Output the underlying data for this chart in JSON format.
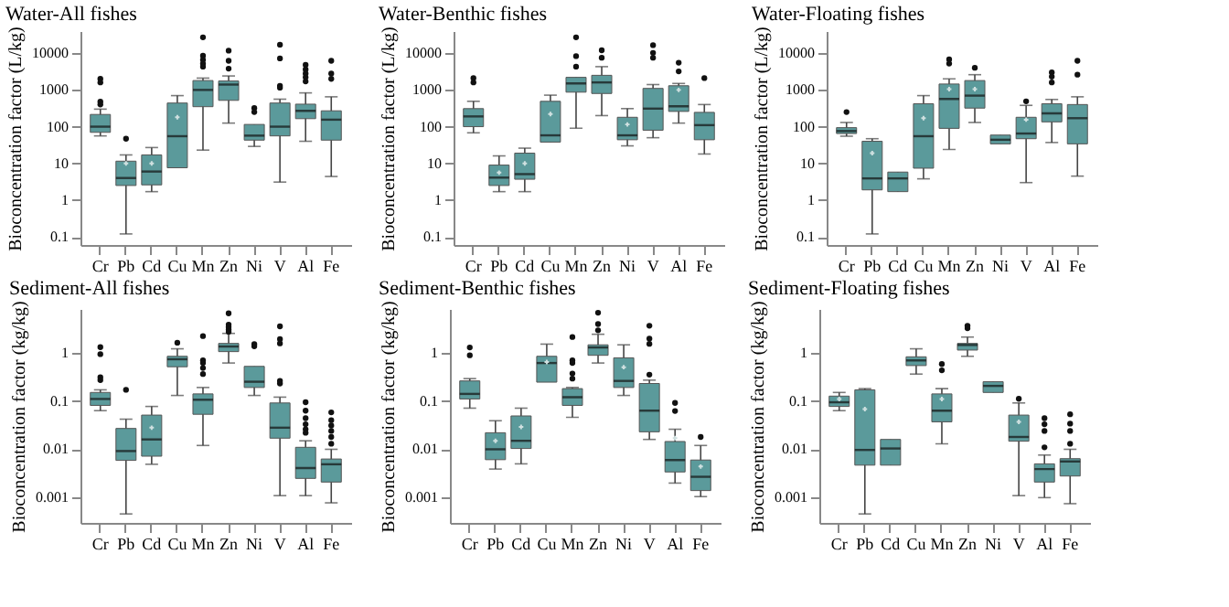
{
  "chart_data": [
    {
      "type": "box",
      "title": "Water-All fishes",
      "ylabel": "Bioconcentration factor (L/kg)",
      "categories": [
        "Cr",
        "Pb",
        "Cd",
        "Cu",
        "Mn",
        "Zn",
        "Ni",
        "V",
        "Al",
        "Fe"
      ],
      "log": true,
      "ylim": [
        0.06,
        40000
      ],
      "yticks": [
        0.1,
        1,
        10,
        100,
        1000,
        10000
      ],
      "series": [
        {
          "color": "#5b9a9b",
          "boxes": [
            {
              "low": 56,
              "q1": 70,
              "median": 100,
              "q3": 215,
              "high": 300,
              "outliers": [
                2000,
                1600,
                480,
                400
              ]
            },
            {
              "low": 0.12,
              "q1": 2.5,
              "median": 4,
              "q3": 11.5,
              "high": 17,
              "mean": 10,
              "outliers": [
                47
              ]
            },
            {
              "low": 1.7,
              "q1": 2.6,
              "median": 6,
              "q3": 17,
              "high": 27,
              "mean": 10
            },
            {
              "low": 7.6,
              "q1": 7.6,
              "median": 55,
              "q3": 440,
              "high": 700,
              "mean": 180
            },
            {
              "low": 23,
              "q1": 350,
              "median": 1000,
              "q3": 1800,
              "high": 2100,
              "outliers": [
                27000,
                8500,
                6600,
                5200,
                4300
              ]
            },
            {
              "low": 125,
              "q1": 520,
              "median": 1400,
              "q3": 1750,
              "high": 2400,
              "outliers": [
                11700,
                6200,
                3800
              ]
            },
            {
              "low": 29,
              "q1": 43,
              "median": 57,
              "q3": 115,
              "high": 115,
              "outliers": [
                320,
                250
              ]
            },
            {
              "low": 3.1,
              "q1": 56,
              "median": 100,
              "q3": 440,
              "high": 560,
              "outliers": [
                17000,
                7200,
                1300,
                1150
              ]
            },
            {
              "low": 40,
              "q1": 165,
              "median": 270,
              "q3": 410,
              "high": 830,
              "outliers": [
                4800,
                3600,
                2800,
                2200,
                1700
              ]
            },
            {
              "low": 4.4,
              "q1": 43,
              "median": 155,
              "q3": 270,
              "high": 650,
              "outliers": [
                6200,
                2800,
                2000
              ]
            }
          ]
        }
      ]
    },
    {
      "type": "box",
      "title": "Water-Benthic fishes",
      "ylabel": "Bioconcentration factor (L/kg)",
      "categories": [
        "Cr",
        "Pb",
        "Cd",
        "Cu",
        "Mn",
        "Zn",
        "Ni",
        "V",
        "Al",
        "Fe"
      ],
      "log": true,
      "ylim": [
        0.06,
        40000
      ],
      "yticks": [
        0.1,
        1,
        10,
        100,
        1000,
        10000
      ],
      "series": [
        {
          "color": "#5b9a9b",
          "boxes": [
            {
              "low": 68,
              "q1": 100,
              "median": 190,
              "q3": 310,
              "high": 490,
              "outliers": [
                2100,
                1600
              ]
            },
            {
              "low": 1.7,
              "q1": 2.5,
              "median": 4.1,
              "q3": 9,
              "high": 16,
              "mean": 5.6
            },
            {
              "low": 1.7,
              "q1": 3.7,
              "median": 5.1,
              "q3": 19,
              "high": 26,
              "mean": 10
            },
            {
              "low": 38,
              "q1": 38,
              "median": 58,
              "q3": 490,
              "high": 720,
              "mean": 220
            },
            {
              "low": 91,
              "q1": 870,
              "median": 1500,
              "q3": 2200,
              "high": 2200,
              "outliers": [
                27000,
                8300,
                4300
              ]
            },
            {
              "low": 200,
              "q1": 800,
              "median": 1600,
              "q3": 2500,
              "high": 4300,
              "outliers": [
                12000,
                7500
              ]
            },
            {
              "low": 30,
              "q1": 44,
              "median": 58,
              "q3": 180,
              "high": 310,
              "mean": 115
            },
            {
              "low": 50,
              "q1": 80,
              "median": 310,
              "q3": 1100,
              "high": 1400,
              "outliers": [
                16500,
                10200,
                7500
              ]
            },
            {
              "low": 125,
              "q1": 260,
              "median": 360,
              "q3": 1300,
              "high": 1500,
              "mean": 1000,
              "outliers": [
                5500,
                3200
              ]
            },
            {
              "low": 18,
              "q1": 44,
              "median": 110,
              "q3": 245,
              "high": 400,
              "outliers": [
                2100
              ]
            }
          ]
        }
      ]
    },
    {
      "type": "box",
      "title": "Water-Floating fishes",
      "ylabel": "Bioconcentration factor (L/kg)",
      "categories": [
        "Cr",
        "Pb",
        "Cd",
        "Cu",
        "Mn",
        "Zn",
        "Ni",
        "V",
        "Al",
        "Fe"
      ],
      "log": true,
      "ylim": [
        0.06,
        40000
      ],
      "yticks": [
        0.1,
        1,
        10,
        100,
        1000,
        10000
      ],
      "series": [
        {
          "color": "#5b9a9b",
          "boxes": [
            {
              "low": 55,
              "q1": 65,
              "median": 76,
              "q3": 94,
              "high": 130,
              "outliers": [
                250
              ]
            },
            {
              "low": 0.12,
              "q1": 1.9,
              "median": 3.9,
              "q3": 40,
              "high": 47,
              "mean": 19
            },
            {
              "low": 1.7,
              "q1": 1.7,
              "median": 3.9,
              "q3": 5.8,
              "high": 5.8
            },
            {
              "low": 3.8,
              "q1": 7.4,
              "median": 55,
              "q3": 420,
              "high": 700,
              "mean": 170
            },
            {
              "low": 24,
              "q1": 90,
              "median": 570,
              "q3": 1450,
              "high": 2000,
              "mean": 1050,
              "outliers": [
                6800,
                5200
              ]
            },
            {
              "low": 130,
              "q1": 320,
              "median": 700,
              "q3": 1800,
              "high": 2600,
              "mean": 1050,
              "outliers": [
                4000
              ]
            },
            {
              "low": 34,
              "q1": 34,
              "median": 44,
              "q3": 59,
              "high": 59
            },
            {
              "low": 3,
              "q1": 47,
              "median": 65,
              "q3": 180,
              "high": 380,
              "mean": 155,
              "outliers": [
                490
              ]
            },
            {
              "low": 37,
              "q1": 135,
              "median": 230,
              "q3": 420,
              "high": 550,
              "outliers": [
                3000,
                2300,
                1600
              ]
            },
            {
              "low": 4.5,
              "q1": 34,
              "median": 170,
              "q3": 400,
              "high": 650,
              "outliers": [
                6200,
                2600
              ]
            }
          ]
        }
      ]
    },
    {
      "type": "box",
      "title": "Sediment-All fishes",
      "ylabel": "Bioconcentration factor (kg/kg)",
      "categories": [
        "Cr",
        "Pb",
        "Cd",
        "Cu",
        "Mn",
        "Zn",
        "Ni",
        "V",
        "Al",
        "Fe"
      ],
      "log": true,
      "ylim": [
        0.0003,
        8
      ],
      "yticks": [
        0.001,
        0.01,
        0.1,
        1
      ],
      "series": [
        {
          "color": "#5b9a9b",
          "boxes": [
            {
              "low": 0.063,
              "q1": 0.081,
              "median": 0.11,
              "q3": 0.15,
              "high": 0.17,
              "outliers": [
                1.3,
                0.93,
                0.31,
                0.27
              ]
            },
            {
              "low": 0.00046,
              "q1": 0.0059,
              "median": 0.0092,
              "q3": 0.027,
              "high": 0.042,
              "outliers": [
                0.17
              ]
            },
            {
              "low": 0.0049,
              "q1": 0.0072,
              "median": 0.016,
              "q3": 0.051,
              "high": 0.077,
              "mean": 0.028
            },
            {
              "low": 0.13,
              "q1": 0.51,
              "median": 0.73,
              "q3": 0.84,
              "high": 1.2,
              "outliers": [
                1.6
              ]
            },
            {
              "low": 0.012,
              "q1": 0.053,
              "median": 0.106,
              "q3": 0.14,
              "high": 0.19,
              "outliers": [
                2.2,
                0.69,
                0.61,
                0.48,
                0.36
              ]
            },
            {
              "low": 0.61,
              "q1": 1.05,
              "median": 1.34,
              "q3": 1.55,
              "high": 2.5,
              "outliers": [
                6.5,
                3.8,
                3.4,
                3.0,
                2.7
              ]
            },
            {
              "low": 0.13,
              "q1": 0.19,
              "median": 0.25,
              "q3": 0.52,
              "high": 0.52,
              "outliers": [
                1.5,
                1.35
              ]
            },
            {
              "low": 0.0011,
              "q1": 0.017,
              "median": 0.028,
              "q3": 0.091,
              "high": 0.12,
              "outliers": [
                3.5,
                1.9,
                1.55,
                0.26,
                0.23
              ]
            },
            {
              "low": 0.0011,
              "q1": 0.0025,
              "median": 0.0041,
              "q3": 0.011,
              "high": 0.015,
              "outliers": [
                0.094,
                0.063,
                0.044,
                0.033,
                0.026,
                0.022
              ]
            },
            {
              "low": 0.00078,
              "q1": 0.0021,
              "median": 0.0049,
              "q3": 0.0063,
              "high": 0.01,
              "outliers": [
                0.058,
                0.04,
                0.031,
                0.024,
                0.018,
                0.013
              ]
            }
          ]
        }
      ]
    },
    {
      "type": "box",
      "title": "Sediment-Benthic fishes",
      "ylabel": "Bioconcentration factor (kg/kg)",
      "categories": [
        "Cr",
        "Pb",
        "Cd",
        "Cu",
        "Mn",
        "Zn",
        "Ni",
        "V",
        "Al",
        "Fe"
      ],
      "log": true,
      "ylim": [
        0.0003,
        8
      ],
      "yticks": [
        0.001,
        0.01,
        0.1,
        1
      ],
      "series": [
        {
          "color": "#5b9a9b",
          "boxes": [
            {
              "low": 0.071,
              "q1": 0.11,
              "median": 0.14,
              "q3": 0.26,
              "high": 0.29,
              "outliers": [
                1.28,
                0.88
              ]
            },
            {
              "low": 0.0039,
              "q1": 0.0061,
              "median": 0.01,
              "q3": 0.022,
              "high": 0.039,
              "mean": 0.015
            },
            {
              "low": 0.005,
              "q1": 0.0104,
              "median": 0.015,
              "q3": 0.049,
              "high": 0.071,
              "mean": 0.029
            },
            {
              "low": 0.245,
              "q1": 0.245,
              "median": 0.61,
              "q3": 0.84,
              "high": 1.5,
              "mean": 0.64
            },
            {
              "low": 0.046,
              "q1": 0.081,
              "median": 0.12,
              "q3": 0.18,
              "high": 0.19,
              "outliers": [
                2.1,
                0.69,
                0.61,
                0.37,
                0.29
              ]
            },
            {
              "low": 0.61,
              "q1": 0.88,
              "median": 1.28,
              "q3": 1.45,
              "high": 2.4,
              "outliers": [
                6.7,
                3.9,
                2.9
              ]
            },
            {
              "low": 0.13,
              "q1": 0.19,
              "median": 0.26,
              "q3": 0.78,
              "high": 1.45,
              "mean": 0.5
            },
            {
              "low": 0.016,
              "q1": 0.023,
              "median": 0.063,
              "q3": 0.23,
              "high": 0.27,
              "outliers": [
                3.6,
                1.95,
                1.52,
                0.35
              ]
            },
            {
              "low": 0.002,
              "q1": 0.0034,
              "median": 0.006,
              "q3": 0.0145,
              "high": 0.026,
              "mean": 0.017,
              "outliers": [
                0.091,
                0.062
              ]
            },
            {
              "low": 0.00105,
              "q1": 0.0014,
              "median": 0.0027,
              "q3": 0.006,
              "high": 0.012,
              "mean": 0.0044,
              "outliers": [
                0.018
              ]
            }
          ]
        }
      ]
    },
    {
      "type": "box",
      "title": "Sediment-Floating fishes",
      "ylabel": "Bioconcentration factor (kg/kg)",
      "categories": [
        "Cr",
        "Pb",
        "Cd",
        "Cu",
        "Mn",
        "Zn",
        "Ni",
        "V",
        "Al",
        "Fe"
      ],
      "log": true,
      "ylim": [
        0.0003,
        8
      ],
      "yticks": [
        0.001,
        0.01,
        0.1,
        1
      ],
      "series": [
        {
          "color": "#5b9a9b",
          "boxes": [
            {
              "low": 0.063,
              "q1": 0.077,
              "median": 0.094,
              "q3": 0.126,
              "high": 0.15,
              "mean": 0.11
            },
            {
              "low": 0.00046,
              "q1": 0.0047,
              "median": 0.0097,
              "q3": 0.17,
              "high": 0.18,
              "mean": 0.068
            },
            {
              "low": 0.0047,
              "q1": 0.0047,
              "median": 0.0104,
              "q3": 0.016,
              "high": 0.016
            },
            {
              "low": 0.36,
              "q1": 0.54,
              "median": 0.69,
              "q3": 0.82,
              "high": 1.2
            },
            {
              "low": 0.013,
              "q1": 0.037,
              "median": 0.063,
              "q3": 0.14,
              "high": 0.18,
              "mean": 0.11,
              "outliers": [
                0.58,
                0.43
              ]
            },
            {
              "low": 0.84,
              "q1": 1.13,
              "median": 1.44,
              "q3": 1.55,
              "high": 2.1,
              "outliers": [
                3.6,
                3.2
              ]
            },
            {
              "low": 0.15,
              "q1": 0.15,
              "median": 0.205,
              "q3": 0.25,
              "high": 0.25
            },
            {
              "low": 0.0011,
              "q1": 0.0147,
              "median": 0.018,
              "q3": 0.051,
              "high": 0.091,
              "mean": 0.037,
              "outliers": [
                0.111
              ]
            },
            {
              "low": 0.001,
              "q1": 0.0021,
              "median": 0.0039,
              "q3": 0.005,
              "high": 0.0076,
              "outliers": [
                0.044,
                0.033,
                0.024,
                0.011
              ]
            },
            {
              "low": 0.00075,
              "q1": 0.0028,
              "median": 0.0056,
              "q3": 0.0064,
              "high": 0.01,
              "outliers": [
                0.053,
                0.034,
                0.024,
                0.013
              ]
            }
          ]
        }
      ]
    }
  ]
}
